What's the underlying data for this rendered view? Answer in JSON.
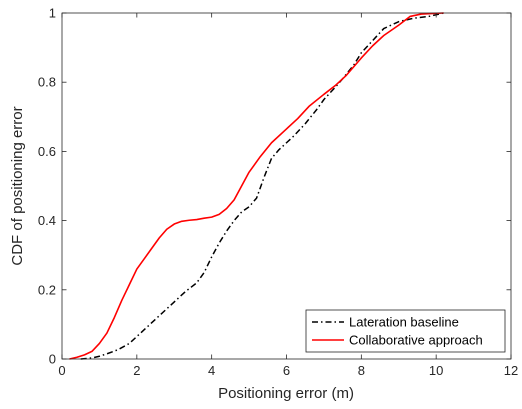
{
  "chart_data": {
    "type": "line",
    "title": "",
    "xlabel": "Positioning error (m)",
    "ylabel": "CDF of positioning error",
    "xlim": [
      0,
      12
    ],
    "ylim": [
      0,
      1
    ],
    "xticks": [
      "0",
      "2",
      "4",
      "6",
      "8",
      "10",
      "12"
    ],
    "yticks": [
      "0",
      "0.2",
      "0.4",
      "0.6",
      "0.8",
      "1"
    ],
    "grid": false,
    "legend_position": "bottom-right",
    "series": [
      {
        "name": "Lateration baseline",
        "color": "#000000",
        "line_style": "dash-dot",
        "x": [
          0.5,
          0.8,
          1.0,
          1.2,
          1.5,
          1.8,
          2.0,
          2.3,
          2.6,
          3.0,
          3.3,
          3.6,
          3.8,
          4.0,
          4.2,
          4.4,
          4.6,
          4.8,
          5.0,
          5.2,
          5.4,
          5.6,
          5.8,
          6.0,
          6.2,
          6.5,
          6.8,
          7.0,
          7.3,
          7.5,
          7.8,
          8.0,
          8.3,
          8.6,
          9.0,
          9.4,
          9.8,
          10.2
        ],
        "y": [
          0.0,
          0.003,
          0.008,
          0.015,
          0.027,
          0.045,
          0.065,
          0.095,
          0.125,
          0.165,
          0.195,
          0.22,
          0.25,
          0.295,
          0.335,
          0.37,
          0.4,
          0.425,
          0.44,
          0.465,
          0.525,
          0.58,
          0.605,
          0.625,
          0.645,
          0.68,
          0.72,
          0.75,
          0.785,
          0.81,
          0.85,
          0.885,
          0.92,
          0.955,
          0.975,
          0.985,
          0.99,
          1.0
        ]
      },
      {
        "name": "Collaborative approach",
        "color": "#ff0000",
        "line_style": "solid",
        "x": [
          0.2,
          0.4,
          0.6,
          0.8,
          1.0,
          1.2,
          1.4,
          1.6,
          1.8,
          2.0,
          2.2,
          2.4,
          2.6,
          2.8,
          3.0,
          3.2,
          3.4,
          3.6,
          3.8,
          4.0,
          4.2,
          4.4,
          4.6,
          4.8,
          5.0,
          5.3,
          5.6,
          6.0,
          6.3,
          6.6,
          7.0,
          7.3,
          7.6,
          8.0,
          8.3,
          8.6,
          9.0,
          9.3,
          9.6,
          10.2
        ],
        "y": [
          0.0,
          0.005,
          0.012,
          0.022,
          0.045,
          0.075,
          0.12,
          0.17,
          0.215,
          0.26,
          0.29,
          0.32,
          0.35,
          0.375,
          0.39,
          0.398,
          0.401,
          0.403,
          0.407,
          0.41,
          0.418,
          0.435,
          0.46,
          0.5,
          0.54,
          0.585,
          0.625,
          0.665,
          0.695,
          0.73,
          0.765,
          0.79,
          0.82,
          0.87,
          0.905,
          0.935,
          0.965,
          0.99,
          0.997,
          1.0
        ]
      }
    ]
  }
}
